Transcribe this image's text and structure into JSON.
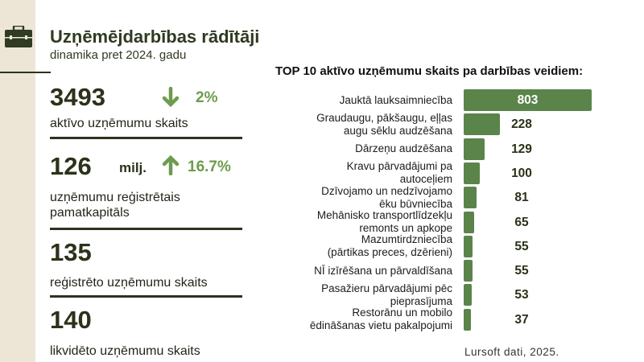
{
  "header": {
    "icon": "briefcase-icon",
    "title": "Uzņēmējdarbības rādītāji",
    "subtitle": "dinamika pret 2024. gadu"
  },
  "metrics": [
    {
      "value": "3493",
      "unit": "",
      "trend": "down",
      "change": "2%",
      "label": "aktīvo uzņēmumu skaits"
    },
    {
      "value": "126",
      "unit": "milj.",
      "trend": "up",
      "change": "16.7%",
      "label_lines": [
        "uzņēmumu reģistrētais",
        "pamatkapitāls"
      ]
    },
    {
      "value": "135",
      "label": "reģistrēto uzņēmumu skaits"
    },
    {
      "value": "140",
      "label": "likvidēto uzņēmumu skaits"
    }
  ],
  "colors": {
    "bar": "#5a844a",
    "trend": "#6e9b4e",
    "accent_dark": "#2f3b22",
    "sidebar": "#ede6d6"
  },
  "chart_data": {
    "type": "bar",
    "orientation": "horizontal",
    "title": "TOP 10 aktīvo uzņēmumu skaits pa darbības veidiem:",
    "categories": [
      [
        "Jauktā lauksaimniecība"
      ],
      [
        "Graudaugu, pākšaugu, eļļas",
        "augu sēklu audzēšana"
      ],
      [
        "Dārzeņu audzēšana"
      ],
      [
        "Kravu pārvadājumi pa",
        "autoceļiem"
      ],
      [
        "Dzīvojamo un nedzīvojamo",
        "ēku būvniecība"
      ],
      [
        "Mehānisko transportlīdzekļu",
        "remonts un apkope"
      ],
      [
        "Mazumtirdzniecība",
        "(pārtikas preces, dzērieni)"
      ],
      [
        "NĪ izīrēšana un pārvaldīšana"
      ],
      [
        "Pasažieru pārvadājumi pēc",
        "pieprasījuma"
      ],
      [
        "Restorānu un mobilo",
        "ēdināšanas vietu pakalpojumi"
      ]
    ],
    "values": [
      803,
      228,
      129,
      100,
      81,
      65,
      55,
      55,
      53,
      37
    ],
    "grid": false
  },
  "footer": {
    "source": "Lursoft dati, 2025."
  }
}
